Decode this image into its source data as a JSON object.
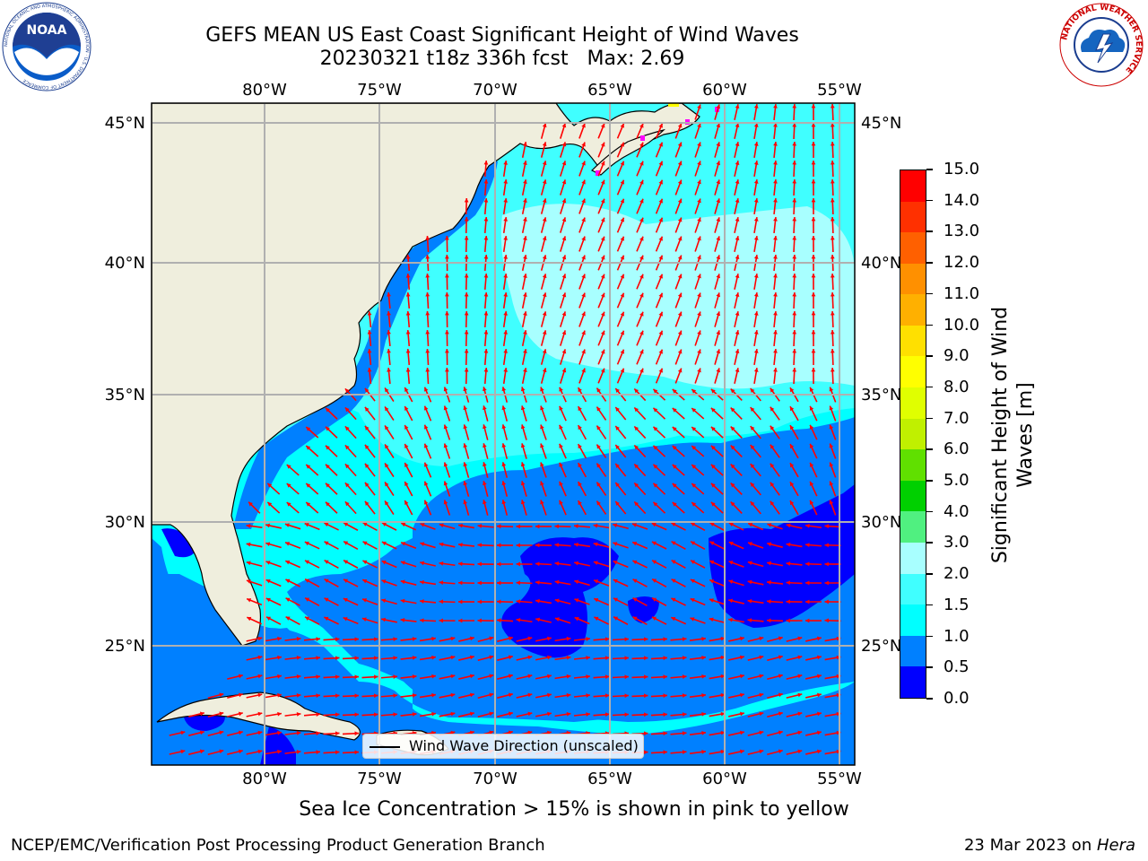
{
  "header": {
    "title_line1": "GEFS MEAN US East Coast Significant Height of Wind Waves",
    "title_line2": "20230321 t18z 336h fcst   Max: 2.69"
  },
  "logos": {
    "noaa": {
      "text": "NOAA",
      "ring_text": "NATIONAL OCEANIC AND ATMOSPHERIC ADMINISTRATION · U.S. DEPARTMENT OF COMMERCE"
    },
    "nws": {
      "ring_text": "NATIONAL WEATHER SERVICE"
    }
  },
  "map": {
    "lon_labels": [
      "80°W",
      "75°W",
      "70°W",
      "65°W",
      "60°W",
      "55°W"
    ],
    "lat_labels": [
      "45°N",
      "40°N",
      "35°N",
      "30°N",
      "25°N"
    ],
    "land_color": "#efeedd",
    "arrow_color": "#ff0000",
    "grid": true
  },
  "legend": {
    "label": "Wind Wave Direction (unscaled)"
  },
  "colorbar": {
    "label": "Significant Height of Wind Waves [m]",
    "ticks": [
      "0.0",
      "0.5",
      "1.0",
      "1.5",
      "2.0",
      "3.0",
      "4.0",
      "5.0",
      "6.0",
      "7.0",
      "8.0",
      "9.0",
      "10.0",
      "11.0",
      "12.0",
      "13.0",
      "14.0",
      "15.0"
    ],
    "colors": [
      "#0000ff",
      "#0080ff",
      "#00ffff",
      "#40ffff",
      "#a8ffff",
      "#50f080",
      "#00d000",
      "#60e000",
      "#c0f000",
      "#e0ff00",
      "#ffff00",
      "#ffe000",
      "#ffb000",
      "#ff9000",
      "#ff6000",
      "#ff3000",
      "#ff0000"
    ]
  },
  "footer": {
    "ice_note": "Sea Ice Concentration > 15% is shown in pink to yellow",
    "branch": "NCEP/EMC/Verification Post Processing Product Generation Branch",
    "date": "23 Mar 2023 on ",
    "host": "Hera"
  }
}
